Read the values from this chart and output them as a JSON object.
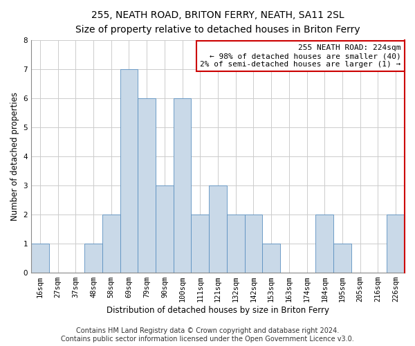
{
  "title": "255, NEATH ROAD, BRITON FERRY, NEATH, SA11 2SL",
  "subtitle": "Size of property relative to detached houses in Briton Ferry",
  "xlabel": "Distribution of detached houses by size in Briton Ferry",
  "ylabel": "Number of detached properties",
  "bar_labels": [
    "16sqm",
    "27sqm",
    "37sqm",
    "48sqm",
    "58sqm",
    "69sqm",
    "79sqm",
    "90sqm",
    "100sqm",
    "111sqm",
    "121sqm",
    "132sqm",
    "142sqm",
    "153sqm",
    "163sqm",
    "174sqm",
    "184sqm",
    "195sqm",
    "205sqm",
    "216sqm",
    "226sqm"
  ],
  "bar_values": [
    1,
    0,
    0,
    1,
    2,
    7,
    6,
    3,
    6,
    2,
    3,
    2,
    2,
    1,
    0,
    0,
    2,
    1,
    0,
    0,
    2
  ],
  "bar_color": "#c9d9e8",
  "bar_edge_color": "#5a8fc0",
  "annotation_line1": "255 NEATH ROAD: 224sqm",
  "annotation_line2": "← 98% of detached houses are smaller (40)",
  "annotation_line3": "2% of semi-detached houses are larger (1) →",
  "annotation_box_edge": "#cc0000",
  "ylim": [
    0,
    8
  ],
  "yticks": [
    0,
    1,
    2,
    3,
    4,
    5,
    6,
    7,
    8
  ],
  "footer_line1": "Contains HM Land Registry data © Crown copyright and database right 2024.",
  "footer_line2": "Contains public sector information licensed under the Open Government Licence v3.0.",
  "vertical_line_color": "#cc0000",
  "grid_color": "#cccccc",
  "title_fontsize": 10,
  "subtitle_fontsize": 9,
  "axis_label_fontsize": 8.5,
  "tick_fontsize": 7.5,
  "annotation_fontsize": 8,
  "footer_fontsize": 7
}
